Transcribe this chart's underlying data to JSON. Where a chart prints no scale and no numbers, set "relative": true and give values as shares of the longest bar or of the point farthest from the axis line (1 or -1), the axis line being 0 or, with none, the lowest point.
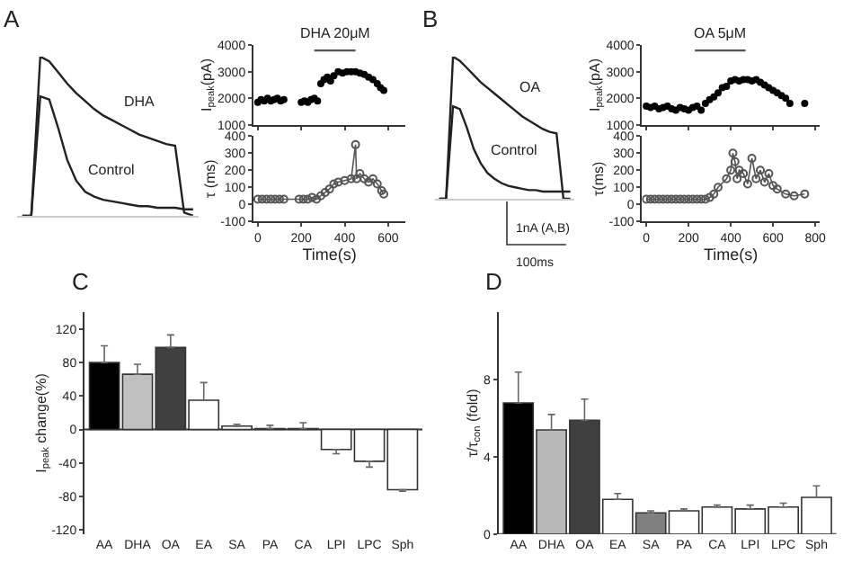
{
  "chart_data": [
    {
      "type": "line",
      "title": "A",
      "relative": true,
      "categories": [
        null,
        null,
        null,
        null,
        null,
        null,
        null,
        null,
        null,
        null,
        null,
        null,
        null,
        null,
        null,
        null,
        null,
        null,
        null,
        null
      ],
      "series": [
        {
          "color": "#222222",
          "values": [
            0,
            0,
            1.0,
            0.97,
            0.9,
            0.83,
            0.77,
            0.72,
            0.67,
            0.63,
            0.6,
            0.57,
            0.54,
            0.51,
            0.49,
            0.47,
            0.45,
            0.44,
            0.02,
            0.0
          ]
        },
        {
          "color": "#222222",
          "values": [
            0,
            0,
            0.75,
            0.73,
            0.55,
            0.35,
            0.22,
            0.15,
            0.12,
            0.1,
            0.09,
            0.08,
            0.07,
            0.06,
            0.06,
            0.05,
            0.05,
            0.05,
            0.04,
            0.04
          ]
        }
      ],
      "annotations": [
        "DHA",
        "Control"
      ],
      "tick_labels": false
    },
    {
      "type": "scatter",
      "ylabel": "I$_{peak}$(pA)",
      "xlim": [
        -20,
        680
      ],
      "xticks": [
        0,
        200,
        400,
        600
      ],
      "ylim": [
        1000,
        4000
      ],
      "yticks": [
        1000,
        2000,
        3000,
        4000
      ],
      "tick_labels": "y",
      "marker": "circle",
      "series": [
        {
          "color": "#000000",
          "x": [
            0,
            15,
            30,
            45,
            60,
            75,
            90,
            105,
            120,
            200,
            215,
            230,
            245,
            260,
            275,
            290,
            305,
            320,
            335,
            350,
            370,
            390,
            410,
            430,
            450,
            470,
            490,
            510,
            530,
            550,
            565,
            580
          ],
          "values": [
            1850,
            1950,
            1900,
            2000,
            1900,
            1950,
            2000,
            1900,
            1950,
            1850,
            1900,
            1850,
            1950,
            2000,
            1900,
            2550,
            2700,
            2800,
            2650,
            2850,
            3000,
            2950,
            3000,
            3000,
            3000,
            2950,
            2900,
            2800,
            2700,
            2550,
            2400,
            2300
          ]
        },
        {
          "type": "line",
          "marker": "none",
          "color": "#555555",
          "x": [
            260,
            450
          ],
          "values": [
            3800,
            3800
          ]
        }
      ],
      "annotations": [
        "DHA 20μM"
      ]
    },
    {
      "type": "line",
      "xlabel": "Time(s)",
      "ylabel": "τ (ms)",
      "xlim": [
        -20,
        680
      ],
      "xticks": [
        0,
        200,
        400,
        600
      ],
      "ylim": [
        -100,
        400
      ],
      "yticks": [
        -100,
        0,
        100,
        200,
        300,
        400
      ],
      "marker": "circle",
      "series": [
        {
          "color": "#555555",
          "x": [
            0,
            20,
            40,
            60,
            80,
            100,
            120,
            190,
            210,
            230,
            250,
            270,
            290,
            310,
            330,
            350,
            370,
            400,
            430,
            450,
            455,
            470,
            490,
            510,
            530,
            550,
            570,
            580
          ],
          "values": [
            30,
            30,
            30,
            30,
            30,
            30,
            30,
            30,
            30,
            30,
            40,
            30,
            50,
            70,
            90,
            120,
            130,
            140,
            150,
            350,
            150,
            180,
            150,
            130,
            150,
            120,
            80,
            60
          ]
        }
      ]
    },
    {
      "type": "line",
      "title": "B",
      "relative": true,
      "categories": [
        null,
        null,
        null,
        null,
        null,
        null,
        null,
        null,
        null,
        null,
        null,
        null,
        null,
        null,
        null,
        null,
        null,
        null,
        null,
        null
      ],
      "series": [
        {
          "color": "#222222",
          "values": [
            0,
            0,
            1.0,
            0.97,
            0.92,
            0.87,
            0.82,
            0.78,
            0.74,
            0.7,
            0.66,
            0.62,
            0.58,
            0.55,
            0.52,
            0.49,
            0.47,
            0.46,
            0.0,
            0.0
          ]
        },
        {
          "color": "#222222",
          "values": [
            0,
            0,
            0.65,
            0.63,
            0.5,
            0.35,
            0.25,
            0.18,
            0.14,
            0.11,
            0.09,
            0.08,
            0.07,
            0.06,
            0.06,
            0.05,
            0.05,
            0.05,
            0.05,
            0.05
          ]
        }
      ],
      "annotations": [
        "OA",
        "Control",
        "1nA (A,B)",
        "100ms"
      ],
      "tick_labels": false
    },
    {
      "type": "scatter",
      "ylabel": "I$_{peak}$(pA)",
      "xlim": [
        -20,
        820
      ],
      "xticks": [
        0,
        200,
        400,
        600,
        800
      ],
      "ylim": [
        1000,
        4000
      ],
      "yticks": [
        1000,
        2000,
        3000,
        4000
      ],
      "tick_labels": "y",
      "marker": "circle",
      "series": [
        {
          "color": "#000000",
          "x": [
            0,
            20,
            40,
            60,
            80,
            100,
            120,
            140,
            160,
            180,
            200,
            220,
            240,
            260,
            280,
            300,
            320,
            340,
            360,
            380,
            400,
            420,
            440,
            460,
            480,
            500,
            520,
            540,
            560,
            580,
            600,
            620,
            640,
            660,
            680,
            750
          ],
          "values": [
            1700,
            1650,
            1700,
            1600,
            1650,
            1700,
            1600,
            1550,
            1650,
            1600,
            1550,
            1650,
            1700,
            1550,
            1800,
            1950,
            2050,
            2200,
            2400,
            2450,
            2650,
            2700,
            2650,
            2700,
            2700,
            2650,
            2700,
            2600,
            2500,
            2400,
            2300,
            2200,
            2100,
            2000,
            1800,
            1800
          ]
        },
        {
          "type": "line",
          "marker": "none",
          "color": "#555555",
          "x": [
            230,
            470
          ],
          "values": [
            3800,
            3800
          ]
        }
      ],
      "annotations": [
        "OA 5μM"
      ]
    },
    {
      "type": "line",
      "xlabel": "Time(s)",
      "ylabel": "τ(ms)",
      "xlim": [
        -20,
        820
      ],
      "xticks": [
        0,
        200,
        400,
        600,
        800
      ],
      "ylim": [
        -100,
        400
      ],
      "yticks": [
        -100,
        0,
        100,
        200,
        300,
        400
      ],
      "marker": "circle",
      "series": [
        {
          "color": "#555555",
          "x": [
            0,
            20,
            40,
            60,
            80,
            100,
            120,
            140,
            160,
            180,
            200,
            220,
            240,
            260,
            280,
            300,
            320,
            340,
            380,
            400,
            410,
            420,
            430,
            440,
            460,
            480,
            500,
            520,
            540,
            560,
            580,
            600,
            620,
            660,
            700,
            750
          ],
          "values": [
            30,
            30,
            30,
            30,
            30,
            30,
            30,
            30,
            30,
            30,
            30,
            30,
            30,
            30,
            30,
            40,
            60,
            100,
            150,
            200,
            300,
            250,
            150,
            200,
            180,
            120,
            270,
            150,
            200,
            130,
            180,
            110,
            90,
            60,
            50,
            60
          ]
        }
      ]
    },
    {
      "type": "bar",
      "title": "C",
      "ylabel": "I$_{peak}$ change(%)",
      "categories": [
        "AA",
        "DHA",
        "OA",
        "EA",
        "SA",
        "PA",
        "CA",
        "LPI",
        "LPC",
        "Sph"
      ],
      "values": [
        80,
        66,
        98,
        35,
        4,
        1,
        1,
        -24,
        -38,
        -72
      ],
      "errors": [
        [
          80,
          100
        ],
        [
          66,
          78
        ],
        [
          98,
          113
        ],
        [
          35,
          56
        ],
        [
          4,
          6
        ],
        [
          1,
          5
        ],
        [
          1,
          8
        ],
        [
          -29,
          -24
        ],
        [
          -45,
          -38
        ],
        [
          -74,
          -72
        ]
      ],
      "colors": [
        "#000000",
        "#c0c0c0",
        "#404040",
        "#ffffff",
        "#ffffff",
        "#ffffff",
        "#ffffff",
        "#ffffff",
        "#ffffff",
        "#ffffff"
      ],
      "ylim": [
        -125,
        140
      ],
      "yticks": [
        -120,
        -80,
        -40,
        0,
        40,
        80,
        120
      ]
    },
    {
      "type": "bar",
      "title": "D",
      "ylabel": "τ/τ$_{con}$ (fold)",
      "categories": [
        "AA",
        "DHA",
        "OA",
        "EA",
        "SA",
        "PA",
        "CA",
        "LPI",
        "LPC",
        "Sph"
      ],
      "values": [
        6.8,
        5.4,
        5.9,
        1.8,
        1.1,
        1.2,
        1.4,
        1.3,
        1.4,
        1.9
      ],
      "errors": [
        [
          6.8,
          8.4
        ],
        [
          5.4,
          6.2
        ],
        [
          5.9,
          7.0
        ],
        [
          1.8,
          2.1
        ],
        [
          1.1,
          1.2
        ],
        [
          1.2,
          1.3
        ],
        [
          1.4,
          1.5
        ],
        [
          1.3,
          1.5
        ],
        [
          1.4,
          1.6
        ],
        [
          1.9,
          2.5
        ]
      ],
      "colors": [
        "#000000",
        "#b8b8b8",
        "#404040",
        "#ffffff",
        "#808080",
        "#ffffff",
        "#ffffff",
        "#ffffff",
        "#ffffff",
        "#ffffff"
      ],
      "ylim": [
        0,
        11.5
      ],
      "yticks": [
        0,
        4,
        8
      ]
    }
  ]
}
